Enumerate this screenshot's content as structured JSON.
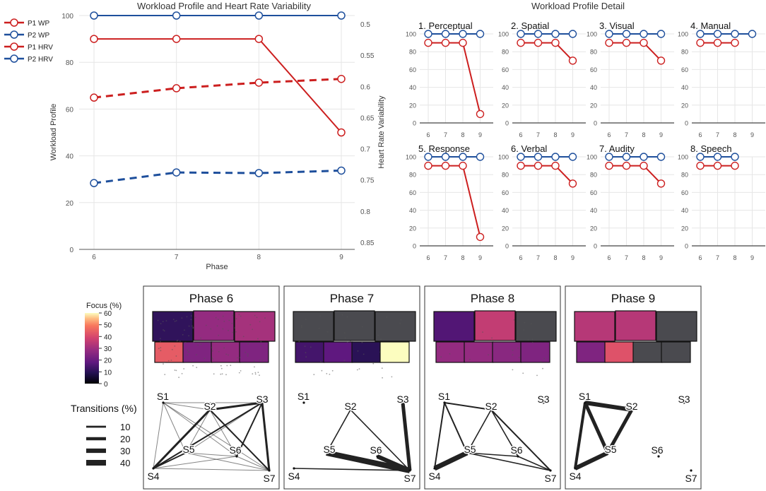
{
  "colors": {
    "p1": "#cc1f1f",
    "p2": "#1e4f9c",
    "grid": "#e6e6e6",
    "axis": "#555555",
    "text": "#333333"
  },
  "chart_data": [
    {
      "type": "line",
      "title": "Workload Profile and Heart Rate Variability",
      "xlabel": "Phase",
      "ylabel": "Workload Profile",
      "y2label": "Heart Rate Variability",
      "x": [
        6,
        7,
        8,
        9
      ],
      "ylim": [
        0,
        100
      ],
      "y2lim": [
        0.5,
        0.85
      ],
      "yticks": [
        0,
        20,
        40,
        60,
        80,
        100
      ],
      "y2ticks": [
        "0.5",
        "0.55",
        "0.6",
        "0.65",
        "0.7",
        "0.75",
        "0.8",
        "0.85"
      ],
      "legend": [
        "P1 WP",
        "P2 WP",
        "P1 HRV",
        "P2 HRV"
      ],
      "legend_position": "left",
      "series": [
        {
          "name": "P1 WP",
          "axis": "left",
          "dashed": false,
          "values": [
            90,
            90,
            90,
            50
          ]
        },
        {
          "name": "P2 WP",
          "axis": "left",
          "dashed": false,
          "values": [
            100,
            100,
            100,
            100
          ]
        },
        {
          "name": "P1 HRV",
          "axis": "right",
          "dashed": true,
          "values": [
            0.618,
            0.603,
            0.594,
            0.588
          ]
        },
        {
          "name": "P2 HRV",
          "axis": "right",
          "dashed": true,
          "values": [
            0.755,
            0.738,
            0.739,
            0.735
          ]
        }
      ]
    },
    {
      "type": "line",
      "title": "Workload Profile Detail",
      "x": [
        6,
        7,
        8,
        9
      ],
      "ylim": [
        0,
        100
      ],
      "yticks": [
        0,
        20,
        40,
        60,
        80,
        100
      ],
      "panels": [
        {
          "name": "1. Perceptual",
          "p1": [
            90,
            90,
            90,
            10
          ],
          "p2": [
            100,
            100,
            100,
            100
          ]
        },
        {
          "name": "2. Spatial",
          "p1": [
            90,
            90,
            90,
            70
          ],
          "p2": [
            100,
            100,
            100,
            100
          ]
        },
        {
          "name": "3. Visual",
          "p1": [
            90,
            90,
            90,
            70
          ],
          "p2": [
            100,
            100,
            100,
            100
          ]
        },
        {
          "name": "4. Manual",
          "p1": [
            90,
            90,
            90,
            null
          ],
          "p2": [
            100,
            100,
            100,
            100
          ]
        },
        {
          "name": "5. Response",
          "p1": [
            90,
            90,
            90,
            10
          ],
          "p2": [
            100,
            100,
            100,
            100
          ]
        },
        {
          "name": "6. Verbal",
          "p1": [
            90,
            90,
            90,
            70
          ],
          "p2": [
            100,
            100,
            100,
            100
          ]
        },
        {
          "name": "7. Audity",
          "p1": [
            90,
            90,
            90,
            70
          ],
          "p2": [
            100,
            100,
            100,
            100
          ]
        },
        {
          "name": "8. Speech",
          "p1": [
            90,
            90,
            90,
            null
          ],
          "p2": [
            100,
            100,
            100,
            null
          ]
        }
      ]
    },
    {
      "type": "heatmap",
      "focus_legend": {
        "title": "Focus (%)",
        "ticks": [
          0,
          10,
          20,
          30,
          40,
          50,
          60
        ]
      },
      "transitions_legend": {
        "title": "Transitions (%)",
        "values": [
          10,
          20,
          30,
          40
        ]
      },
      "phases": [
        {
          "name": "Phase 6",
          "top_focus": [
            5,
            22,
            25
          ],
          "bottom_focus": [
            38,
            18,
            22,
            18
          ],
          "nodes": [
            "S1",
            "S2",
            "S3",
            "S4",
            "S5",
            "S6",
            "S7"
          ],
          "edges": [
            [
              "S1",
              "S2",
              5
            ],
            [
              "S1",
              "S3",
              5
            ],
            [
              "S1",
              "S4",
              5
            ],
            [
              "S1",
              "S5",
              5
            ],
            [
              "S1",
              "S6",
              5
            ],
            [
              "S1",
              "S7",
              5
            ],
            [
              "S2",
              "S3",
              15
            ],
            [
              "S2",
              "S4",
              15
            ],
            [
              "S2",
              "S5",
              5
            ],
            [
              "S2",
              "S6",
              5
            ],
            [
              "S2",
              "S7",
              10
            ],
            [
              "S3",
              "S4",
              10
            ],
            [
              "S3",
              "S5",
              5
            ],
            [
              "S3",
              "S6",
              10
            ],
            [
              "S3",
              "S7",
              15
            ],
            [
              "S4",
              "S5",
              10
            ],
            [
              "S4",
              "S6",
              5
            ],
            [
              "S4",
              "S7",
              5
            ],
            [
              "S5",
              "S6",
              5
            ],
            [
              "S5",
              "S7",
              5
            ],
            [
              "S6",
              "S7",
              5
            ]
          ]
        },
        {
          "name": "Phase 7",
          "top_focus": [
            2,
            2,
            2
          ],
          "bottom_focus": [
            8,
            12,
            4,
            58
          ],
          "nodes": [
            "S1",
            "S2",
            "S3",
            "S4",
            "S5",
            "S6",
            "S7"
          ],
          "edges": [
            [
              "S2",
              "S5",
              8
            ],
            [
              "S2",
              "S7",
              8
            ],
            [
              "S4",
              "S7",
              8
            ],
            [
              "S5",
              "S7",
              40
            ],
            [
              "S6",
              "S7",
              30
            ],
            [
              "S3",
              "S7",
              25
            ]
          ]
        },
        {
          "name": "Phase 8",
          "top_focus": [
            10,
            30,
            2
          ],
          "bottom_focus": [
            22,
            22,
            20,
            18
          ],
          "nodes": [
            "S1",
            "S2",
            "S3",
            "S4",
            "S5",
            "S6",
            "S7"
          ],
          "edges": [
            [
              "S1",
              "S2",
              10
            ],
            [
              "S1",
              "S4",
              10
            ],
            [
              "S1",
              "S5",
              10
            ],
            [
              "S2",
              "S5",
              8
            ],
            [
              "S2",
              "S6",
              8
            ],
            [
              "S2",
              "S7",
              10
            ],
            [
              "S4",
              "S5",
              35
            ],
            [
              "S5",
              "S6",
              8
            ],
            [
              "S5",
              "S7",
              8
            ],
            [
              "S6",
              "S7",
              8
            ]
          ]
        },
        {
          "name": "Phase 9",
          "top_focus": [
            28,
            28,
            2
          ],
          "bottom_focus": [
            18,
            36,
            2,
            2
          ],
          "nodes": [
            "S1",
            "S2",
            "S3",
            "S4",
            "S5",
            "S6",
            "S7"
          ],
          "edges": [
            [
              "S1",
              "S2",
              30
            ],
            [
              "S1",
              "S4",
              20
            ],
            [
              "S1",
              "S5",
              25
            ],
            [
              "S2",
              "S5",
              25
            ],
            [
              "S4",
              "S5",
              30
            ]
          ]
        }
      ]
    }
  ]
}
